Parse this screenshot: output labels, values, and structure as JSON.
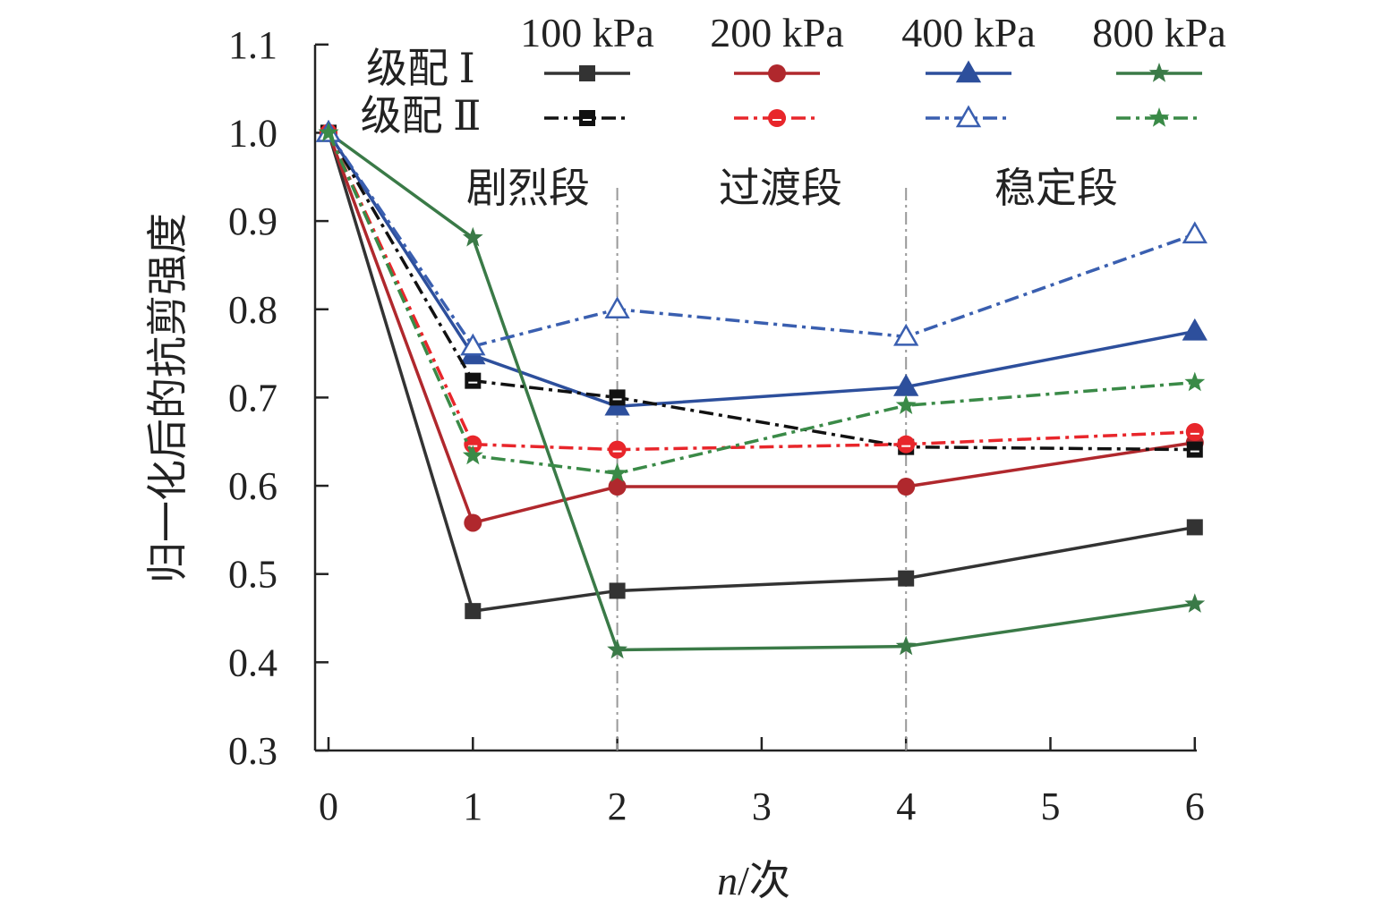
{
  "chart_data": {
    "type": "line",
    "title": "",
    "xlabel": "n/次",
    "xlabel_italic": "n",
    "xlabel_suffix": "/次",
    "ylabel": "归一化后的抗剪强度",
    "xlim": [
      0,
      6
    ],
    "ylim": [
      0.3,
      1.1
    ],
    "xticks": [
      0,
      1,
      2,
      3,
      4,
      5,
      6
    ],
    "yticks": [
      "0.3",
      "0.4",
      "0.5",
      "0.6",
      "0.7",
      "0.8",
      "0.9",
      "1.0",
      "1.1"
    ],
    "grid": false,
    "x": [
      0,
      1,
      2,
      4,
      6
    ],
    "legend": {
      "placement": "top",
      "columns": [
        "100 kPa",
        "200 kPa",
        "400 kPa",
        "800 kPa"
      ],
      "rows": [
        "级配 Ⅰ",
        "级配 Ⅱ"
      ]
    },
    "phase_dividers_x": [
      2,
      4
    ],
    "phases": [
      "剧烈段",
      "过渡段",
      "稳定段"
    ],
    "series": [
      {
        "name": "级配 Ⅰ 100 kPa",
        "grading": "I",
        "pressure": "100 kPa",
        "color": "#333333",
        "marker": "square",
        "style": "solid",
        "values": [
          1.0,
          0.458,
          0.481,
          0.495,
          0.553
        ]
      },
      {
        "name": "级配 Ⅰ 200 kPa",
        "grading": "I",
        "pressure": "200 kPa",
        "color": "#b0282d",
        "marker": "circle",
        "style": "solid",
        "values": [
          1.0,
          0.558,
          0.599,
          0.599,
          0.649
        ]
      },
      {
        "name": "级配 Ⅰ 400 kPa",
        "grading": "I",
        "pressure": "400 kPa",
        "color": "#2d4f9c",
        "marker": "triangle",
        "style": "solid",
        "values": [
          1.0,
          0.748,
          0.69,
          0.712,
          0.775
        ]
      },
      {
        "name": "级配 Ⅰ 800 kPa",
        "grading": "I",
        "pressure": "800 kPa",
        "color": "#3a7a47",
        "marker": "star",
        "style": "solid",
        "values": [
          1.0,
          0.881,
          0.414,
          0.418,
          0.466
        ]
      },
      {
        "name": "级配 Ⅱ 100 kPa",
        "grading": "II",
        "pressure": "100 kPa",
        "color": "#111111",
        "marker": "square",
        "style": "dashdot",
        "values": [
          1.0,
          0.719,
          0.7,
          0.644,
          0.641
        ]
      },
      {
        "name": "级配 Ⅱ 200 kPa",
        "grading": "II",
        "pressure": "200 kPa",
        "color": "#e8262b",
        "marker": "circle",
        "style": "dashdot",
        "values": [
          1.0,
          0.647,
          0.641,
          0.647,
          0.661
        ]
      },
      {
        "name": "级配 Ⅱ 400 kPa",
        "grading": "II",
        "pressure": "400 kPa",
        "color": "#3a5fb0",
        "marker": "triangle",
        "style": "dashdot",
        "values": [
          1.0,
          0.758,
          0.8,
          0.769,
          0.885
        ]
      },
      {
        "name": "级配 Ⅱ 800 kPa",
        "grading": "II",
        "pressure": "800 kPa",
        "color": "#3a8a47",
        "marker": "star",
        "style": "dashdot",
        "values": [
          1.0,
          0.634,
          0.614,
          0.691,
          0.717
        ]
      }
    ]
  }
}
